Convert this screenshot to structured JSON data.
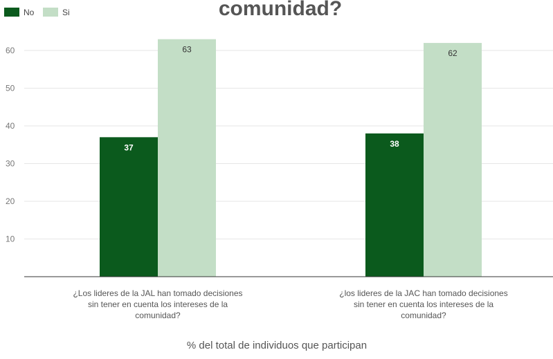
{
  "chart_data": {
    "type": "bar",
    "title": "comunidad?",
    "xlabel": "% del total de individuos que participan",
    "ylabel": "",
    "ylim": [
      0,
      68
    ],
    "yticks": [
      10,
      20,
      30,
      40,
      50,
      60
    ],
    "grid": true,
    "legend_position": "top-left",
    "categories": [
      [
        "¿Los lideres de la JAL han tomado decisiones",
        "sin tener en cuenta los intereses de la",
        "comunidad?"
      ],
      [
        "¿los lideres de la JAC han tomado decisiones",
        "sin tener en cuenta los intereses de la",
        "comunidad?"
      ]
    ],
    "series": [
      {
        "name": "No",
        "color": "#0b5a1d",
        "label_color": "#ffffff",
        "values": [
          37,
          38
        ]
      },
      {
        "name": "Si",
        "color": "#c3dec6",
        "label_color": "#333333",
        "values": [
          63,
          62
        ]
      }
    ]
  }
}
